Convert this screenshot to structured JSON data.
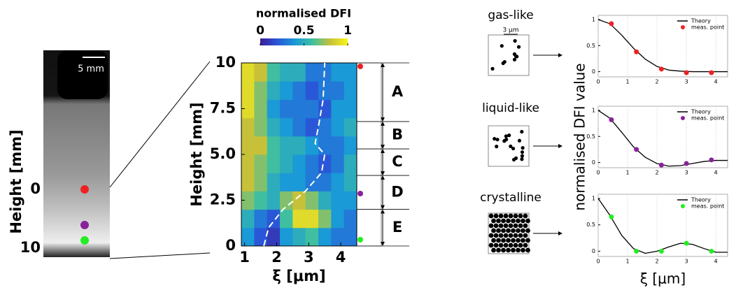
{
  "photo": {
    "scale_bar": "5 mm",
    "ylabel": "Height [mm]",
    "yticks": [
      "0",
      "10"
    ]
  },
  "chart_data": [
    {
      "type": "heatmap",
      "title": "normalised DFI",
      "xlabel": "ξ [μm]",
      "ylabel": "Height [mm]",
      "x": [
        1.1,
        1.5,
        1.9,
        2.3,
        2.7,
        3.1,
        3.5,
        3.9,
        4.3
      ],
      "y": [
        0.5,
        1.5,
        2.5,
        3.5,
        4.5,
        5.5,
        6.5,
        7.5,
        8.5,
        9.5
      ],
      "z": [
        [
          0.4,
          0.2,
          0.1,
          0.4,
          0.5,
          0.6,
          0.4,
          0.3,
          0.3
        ],
        [
          0.5,
          0.3,
          0.2,
          0.6,
          0.9,
          0.9,
          0.7,
          0.4,
          0.3
        ],
        [
          0.7,
          0.6,
          0.5,
          0.7,
          0.8,
          0.7,
          0.5,
          0.4,
          0.4
        ],
        [
          0.8,
          0.7,
          0.5,
          0.4,
          0.4,
          0.3,
          0.3,
          0.4,
          0.5
        ],
        [
          0.8,
          0.7,
          0.6,
          0.5,
          0.4,
          0.3,
          0.2,
          0.3,
          0.5
        ],
        [
          0.8,
          0.8,
          0.6,
          0.5,
          0.5,
          0.4,
          0.3,
          0.3,
          0.4
        ],
        [
          0.8,
          0.7,
          0.5,
          0.4,
          0.3,
          0.2,
          0.3,
          0.4,
          0.5
        ],
        [
          0.9,
          0.7,
          0.4,
          0.3,
          0.3,
          0.3,
          0.2,
          0.4,
          0.4
        ],
        [
          0.9,
          0.7,
          0.5,
          0.4,
          0.3,
          0.2,
          0.3,
          0.3,
          0.4
        ],
        [
          0.9,
          0.8,
          0.6,
          0.5,
          0.5,
          0.3,
          0.3,
          0.4,
          0.4
        ]
      ],
      "zlim": [
        0,
        1
      ],
      "zticks": [
        0,
        0.5,
        1
      ],
      "xlim": [
        0.9,
        4.5
      ],
      "xticks": [
        1,
        2,
        3,
        4
      ],
      "ylim": [
        0,
        10
      ],
      "yticks": [
        0,
        2.5,
        {
          "value": 5,
          "label": "5.0"
        },
        7.5,
        10
      ],
      "line": {
        "color": "#ffffff",
        "x": [
          1.6,
          1.75,
          2.2,
          2.9,
          3.4,
          3.5,
          3.2,
          3.3,
          3.45,
          3.5
        ],
        "values": [
          0,
          1,
          2,
          3,
          4,
          5,
          5.6,
          6.5,
          8,
          10
        ]
      },
      "regions": [
        {
          "label": "A",
          "from": 6.8,
          "to": 10
        },
        {
          "label": "B",
          "from": 5.3,
          "to": 6.8
        },
        {
          "label": "C",
          "from": 3.85,
          "to": 5.3
        },
        {
          "label": "D",
          "from": 2,
          "to": 3.85
        },
        {
          "label": "E",
          "from": 0,
          "to": 2
        }
      ]
    },
    {
      "type": "line",
      "sample_label": "gas-like",
      "scale_label": "3 μm",
      "xlim": [
        0,
        4.4
      ],
      "xticks": [
        0,
        1,
        2,
        3,
        4
      ],
      "ylim": [
        -0.1,
        1.08
      ],
      "yticks": [
        0,
        0.5,
        1
      ],
      "grid": true,
      "series": [
        {
          "name": "Theory",
          "color": "#000000",
          "x": [
            0,
            0.4,
            0.8,
            1.2,
            1.6,
            2.0,
            2.4,
            2.8,
            3.2,
            3.6,
            4.0,
            4.4
          ],
          "values": [
            1,
            0.92,
            0.7,
            0.45,
            0.24,
            0.1,
            0.03,
            0.01,
            0,
            0,
            0,
            0
          ]
        },
        {
          "name": "meas. point",
          "color": "#ee2222",
          "markers": true,
          "x": [
            0.45,
            1.3,
            2.15,
            3.0,
            3.85
          ],
          "values": [
            0.92,
            0.38,
            0.05,
            -0.02,
            -0.02
          ]
        }
      ]
    },
    {
      "type": "line",
      "sample_label": "liquid-like",
      "ylabel": "normalised DFI value",
      "xlim": [
        0,
        4.4
      ],
      "xticks": [
        0,
        1,
        2,
        3,
        4
      ],
      "ylim": [
        -0.1,
        1.08
      ],
      "yticks": [
        0,
        0.5,
        1
      ],
      "grid": true,
      "series": [
        {
          "name": "Theory",
          "color": "#000000",
          "x": [
            0,
            0.4,
            0.8,
            1.2,
            1.6,
            2.0,
            2.4,
            2.8,
            3.2,
            3.6,
            4.0,
            4.4
          ],
          "values": [
            1,
            0.85,
            0.58,
            0.3,
            0.1,
            -0.02,
            -0.07,
            -0.06,
            -0.02,
            0.02,
            0.04,
            0.04
          ]
        },
        {
          "name": "meas. point",
          "color": "#882299",
          "markers": true,
          "x": [
            0.45,
            1.3,
            2.15,
            3.0,
            3.85
          ],
          "values": [
            0.82,
            0.25,
            -0.05,
            -0.02,
            0.05
          ]
        }
      ]
    },
    {
      "type": "line",
      "sample_label": "crystalline",
      "xlabel": "ξ [μm]",
      "xlim": [
        0,
        4.4
      ],
      "xticks": [
        0,
        1,
        2,
        3,
        4
      ],
      "ylim": [
        -0.1,
        1.08
      ],
      "yticks": [
        0,
        0.5,
        1
      ],
      "grid": true,
      "series": [
        {
          "name": "Theory",
          "color": "#000000",
          "x": [
            0,
            0.4,
            0.8,
            1.2,
            1.6,
            2.0,
            2.4,
            2.8,
            3.2,
            3.6,
            4.0,
            4.4
          ],
          "values": [
            1,
            0.68,
            0.3,
            0.05,
            -0.04,
            0,
            0.08,
            0.15,
            0.13,
            0.05,
            -0.02,
            -0.02
          ]
        },
        {
          "name": "meas. point",
          "color": "#22ee22",
          "markers": true,
          "x": [
            0.45,
            1.3,
            2.15,
            3.0,
            3.85
          ],
          "values": [
            0.65,
            0,
            0,
            0.15,
            0
          ]
        }
      ]
    }
  ]
}
